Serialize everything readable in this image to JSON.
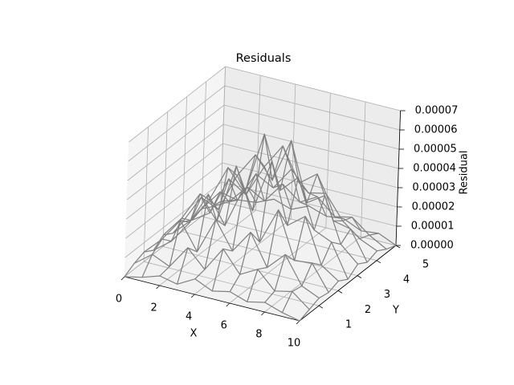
{
  "chart_data": {
    "type": "wireframe",
    "title": "Residuals",
    "xlabel": "X",
    "ylabel": "Y",
    "zlabel": "Residual",
    "x": [
      0,
      1,
      2,
      3,
      4,
      5,
      6,
      7,
      8,
      9,
      10
    ],
    "y": [
      0,
      0.5,
      1,
      1.5,
      2,
      2.5,
      3,
      3.5,
      4,
      4.5,
      5
    ],
    "z": [
      [
        0,
        2e-06,
        5e-06,
        3e-06,
        8e-06,
        4e-06,
        6e-06,
        3e-06,
        5e-06,
        2e-06,
        0
      ],
      [
        3e-06,
        1e-05,
        6e-06,
        1.8e-05,
        9e-06,
        2.2e-05,
        1.1e-05,
        1.6e-05,
        7e-06,
        9e-06,
        2e-06
      ],
      [
        5e-06,
        1.4e-05,
        2.6e-05,
        1.2e-05,
        3.1e-05,
        1.7e-05,
        2.9e-05,
        1.3e-05,
        2.2e-05,
        8e-06,
        4e-06
      ],
      [
        2e-06,
        9e-06,
        2.1e-05,
        3.8e-05,
        2.4e-05,
        4.6e-05,
        2e-05,
        3.9e-05,
        1.5e-05,
        1.6e-05,
        3e-06
      ],
      [
        6e-06,
        1.7e-05,
        3.2e-05,
        2e-05,
        5.1e-05,
        3e-05,
        5.8e-05,
        2.7e-05,
        3.4e-05,
        1.1e-05,
        5e-06
      ],
      [
        3e-06,
        1.2e-05,
        2.5e-05,
        4.4e-05,
        3.3e-05,
        6.6e-05,
        3.9e-05,
        4.8e-05,
        2.3e-05,
        1.9e-05,
        2e-06
      ],
      [
        5e-06,
        2e-05,
        1.6e-05,
        3.6e-05,
        4.9e-05,
        3.8e-05,
        6.1e-05,
        3.1e-05,
        3.7e-05,
        1.4e-05,
        6e-06
      ],
      [
        2e-06,
        8e-06,
        2.8e-05,
        2.2e-05,
        3.9e-05,
        5.2e-05,
        3.5e-05,
        4.2e-05,
        2e-05,
        1.8e-05,
        3e-06
      ],
      [
        4e-06,
        1.5e-05,
        1.3e-05,
        2.9e-05,
        2.4e-05,
        3.6e-05,
        2.6e-05,
        2.8e-05,
        1.6e-05,
        9e-06,
        5e-06
      ],
      [
        1e-06,
        6e-06,
        1.6e-05,
        1.1e-05,
        2.2e-05,
        1.5e-05,
        2e-05,
        1.2e-05,
        1.4e-05,
        7e-06,
        2e-06
      ],
      [
        0,
        3e-06,
        4e-06,
        8e-06,
        5e-06,
        9e-06,
        6e-06,
        7e-06,
        3e-06,
        4e-06,
        0
      ]
    ],
    "color": "#808080",
    "xlim": [
      0,
      10
    ],
    "ylim": [
      0,
      5
    ],
    "zlim": [
      0,
      7e-05
    ],
    "xticks": [
      0,
      2,
      4,
      6,
      8,
      10
    ],
    "yticks": [
      1,
      2,
      3,
      4,
      5
    ],
    "zticks": [
      {
        "value": 0,
        "label": "0.00000"
      },
      {
        "value": 1e-05,
        "label": "0.00001"
      },
      {
        "value": 2e-05,
        "label": "0.00002"
      },
      {
        "value": 3e-05,
        "label": "0.00003"
      },
      {
        "value": 4e-05,
        "label": "0.00004"
      },
      {
        "value": 5e-05,
        "label": "0.00005"
      },
      {
        "value": 6e-05,
        "label": "0.00006"
      },
      {
        "value": 7e-05,
        "label": "0.00007"
      }
    ],
    "grid": true
  }
}
